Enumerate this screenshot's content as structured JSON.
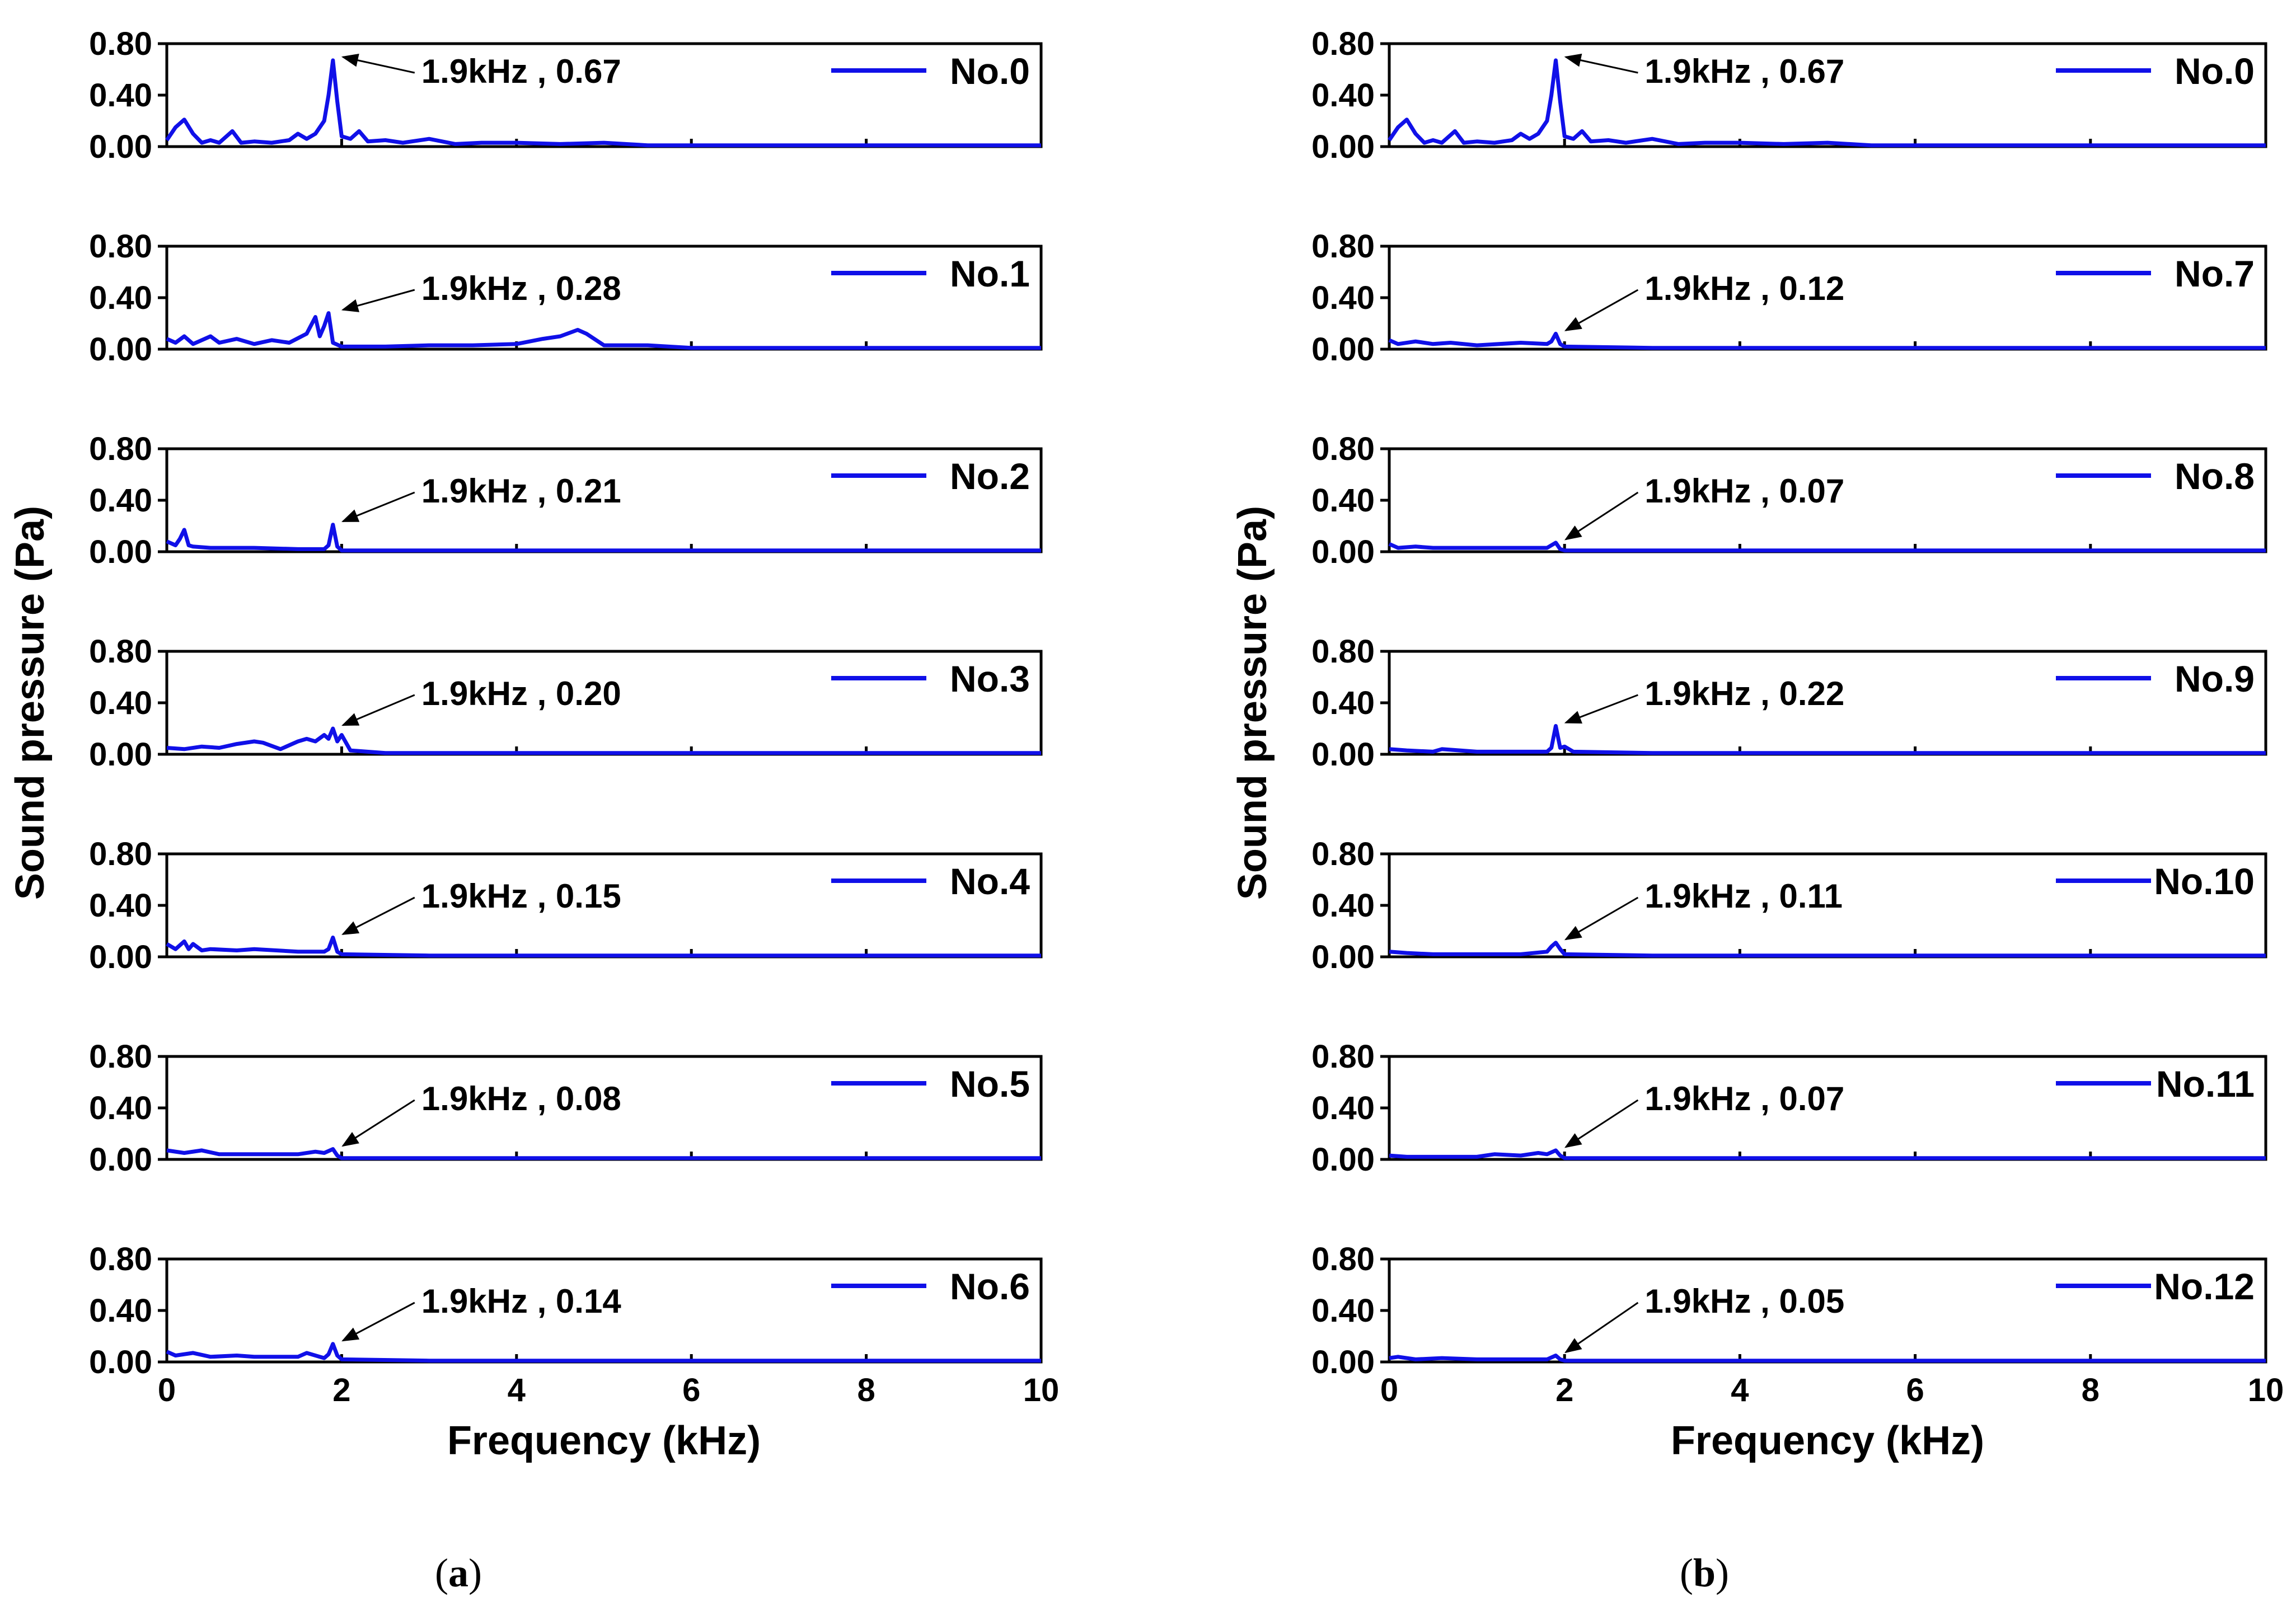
{
  "colors": {
    "series": "#1010e8",
    "axis": "#000000",
    "arrow": "#000000"
  },
  "chart_data": [
    {
      "panel": "a",
      "panel_label": "a",
      "type": "line",
      "ylabel": "Sound pressure (Pa)",
      "xlabel": "Frequency (kHz)",
      "xlim": [
        0,
        10
      ],
      "xticks": [
        "0",
        "2",
        "4",
        "6",
        "8",
        "10"
      ],
      "yticks": [
        "0.00",
        "0.40",
        "0.80"
      ],
      "ylim": [
        0,
        0.8
      ],
      "series": [
        {
          "name": "No.0",
          "peak": 0.67,
          "annotation": "1.9kHz , 0.67",
          "x": [
            0,
            0.1,
            0.2,
            0.3,
            0.4,
            0.5,
            0.6,
            0.75,
            0.85,
            1.0,
            1.2,
            1.4,
            1.5,
            1.6,
            1.7,
            1.8,
            1.85,
            1.9,
            1.95,
            2.0,
            2.1,
            2.2,
            2.3,
            2.5,
            2.7,
            3.0,
            3.3,
            3.6,
            4.0,
            4.5,
            5.0,
            5.5,
            6.0,
            7.0,
            8.0,
            9.0,
            10.0
          ],
          "y": [
            0.05,
            0.15,
            0.21,
            0.1,
            0.03,
            0.05,
            0.03,
            0.12,
            0.03,
            0.04,
            0.03,
            0.05,
            0.1,
            0.06,
            0.1,
            0.2,
            0.4,
            0.67,
            0.35,
            0.08,
            0.06,
            0.12,
            0.04,
            0.05,
            0.03,
            0.06,
            0.02,
            0.03,
            0.03,
            0.02,
            0.03,
            0.01,
            0.01,
            0.01,
            0.01,
            0.01,
            0.01
          ]
        },
        {
          "name": "No.1",
          "peak": 0.28,
          "annotation": "1.9kHz , 0.28",
          "x": [
            0,
            0.1,
            0.2,
            0.3,
            0.5,
            0.6,
            0.8,
            1.0,
            1.2,
            1.4,
            1.6,
            1.7,
            1.75,
            1.8,
            1.85,
            1.9,
            2.0,
            2.5,
            3.0,
            3.5,
            4.0,
            4.3,
            4.5,
            4.7,
            4.8,
            5.0,
            5.5,
            6.0,
            7.0,
            8.0,
            9.0,
            10.0
          ],
          "y": [
            0.08,
            0.05,
            0.1,
            0.04,
            0.1,
            0.05,
            0.08,
            0.04,
            0.07,
            0.05,
            0.12,
            0.25,
            0.1,
            0.18,
            0.28,
            0.05,
            0.02,
            0.02,
            0.03,
            0.03,
            0.04,
            0.08,
            0.1,
            0.15,
            0.12,
            0.03,
            0.03,
            0.01,
            0.01,
            0.01,
            0.01,
            0.01
          ]
        },
        {
          "name": "No.2",
          "peak": 0.21,
          "annotation": "1.9kHz , 0.21",
          "x": [
            0,
            0.1,
            0.15,
            0.2,
            0.25,
            0.3,
            0.5,
            0.8,
            1.0,
            1.5,
            1.8,
            1.85,
            1.9,
            1.95,
            2.0,
            3.0,
            4.0,
            5.0,
            6.0,
            7.0,
            8.0,
            9.0,
            10.0
          ],
          "y": [
            0.08,
            0.05,
            0.1,
            0.17,
            0.05,
            0.04,
            0.03,
            0.03,
            0.03,
            0.02,
            0.02,
            0.05,
            0.21,
            0.04,
            0.01,
            0.01,
            0.01,
            0.01,
            0.01,
            0.01,
            0.01,
            0.01,
            0.01
          ]
        },
        {
          "name": "No.3",
          "peak": 0.2,
          "annotation": "1.9kHz , 0.20",
          "x": [
            0,
            0.2,
            0.4,
            0.6,
            0.8,
            1.0,
            1.1,
            1.3,
            1.5,
            1.6,
            1.7,
            1.8,
            1.85,
            1.9,
            1.95,
            2.0,
            2.1,
            2.5,
            3.0,
            4.0,
            5.0,
            6.0,
            7.0,
            8.0,
            9.0,
            10.0
          ],
          "y": [
            0.05,
            0.04,
            0.06,
            0.05,
            0.08,
            0.1,
            0.09,
            0.04,
            0.1,
            0.12,
            0.1,
            0.15,
            0.12,
            0.2,
            0.1,
            0.15,
            0.03,
            0.01,
            0.01,
            0.01,
            0.01,
            0.01,
            0.01,
            0.01,
            0.01,
            0.01
          ]
        },
        {
          "name": "No.4",
          "peak": 0.15,
          "annotation": "1.9kHz , 0.15",
          "x": [
            0,
            0.1,
            0.2,
            0.25,
            0.3,
            0.4,
            0.5,
            0.8,
            1.0,
            1.5,
            1.8,
            1.85,
            1.9,
            1.95,
            2.0,
            3.0,
            4.0,
            5.0,
            6.0,
            7.0,
            8.0,
            9.0,
            10.0
          ],
          "y": [
            0.1,
            0.06,
            0.12,
            0.06,
            0.1,
            0.05,
            0.06,
            0.05,
            0.06,
            0.04,
            0.04,
            0.06,
            0.15,
            0.04,
            0.02,
            0.01,
            0.01,
            0.01,
            0.01,
            0.01,
            0.01,
            0.01,
            0.01
          ]
        },
        {
          "name": "No.5",
          "peak": 0.08,
          "annotation": "1.9kHz , 0.08",
          "x": [
            0,
            0.2,
            0.4,
            0.6,
            1.0,
            1.5,
            1.7,
            1.8,
            1.9,
            1.95,
            2.0,
            3.0,
            4.0,
            5.0,
            6.0,
            7.0,
            8.0,
            9.0,
            10.0
          ],
          "y": [
            0.07,
            0.05,
            0.07,
            0.04,
            0.04,
            0.04,
            0.06,
            0.05,
            0.08,
            0.03,
            0.01,
            0.01,
            0.01,
            0.01,
            0.01,
            0.01,
            0.01,
            0.01,
            0.01
          ]
        },
        {
          "name": "No.6",
          "peak": 0.14,
          "annotation": "1.9kHz , 0.14",
          "x": [
            0,
            0.1,
            0.3,
            0.5,
            0.8,
            1.0,
            1.5,
            1.6,
            1.8,
            1.85,
            1.9,
            1.95,
            2.0,
            3.0,
            4.0,
            5.0,
            6.0,
            7.0,
            8.0,
            9.0,
            10.0
          ],
          "y": [
            0.08,
            0.05,
            0.07,
            0.04,
            0.05,
            0.04,
            0.04,
            0.07,
            0.03,
            0.06,
            0.14,
            0.05,
            0.02,
            0.01,
            0.01,
            0.01,
            0.01,
            0.01,
            0.01,
            0.01,
            0.01
          ]
        }
      ]
    },
    {
      "panel": "b",
      "panel_label": "b",
      "type": "line",
      "ylabel": "Sound pressure (Pa)",
      "xlabel": "Frequency (kHz)",
      "xlim": [
        0,
        10
      ],
      "xticks": [
        "0",
        "2",
        "4",
        "6",
        "8",
        "10"
      ],
      "yticks": [
        "0.00",
        "0.40",
        "0.80"
      ],
      "ylim": [
        0,
        0.8
      ],
      "series": [
        {
          "name": "No.0",
          "peak": 0.67,
          "annotation": "1.9kHz , 0.67",
          "x": [
            0,
            0.1,
            0.2,
            0.3,
            0.4,
            0.5,
            0.6,
            0.75,
            0.85,
            1.0,
            1.2,
            1.4,
            1.5,
            1.6,
            1.7,
            1.8,
            1.85,
            1.9,
            1.95,
            2.0,
            2.1,
            2.2,
            2.3,
            2.5,
            2.7,
            3.0,
            3.3,
            3.6,
            4.0,
            4.5,
            5.0,
            5.5,
            6.0,
            7.0,
            8.0,
            9.0,
            10.0
          ],
          "y": [
            0.05,
            0.15,
            0.21,
            0.1,
            0.03,
            0.05,
            0.03,
            0.12,
            0.03,
            0.04,
            0.03,
            0.05,
            0.1,
            0.06,
            0.1,
            0.2,
            0.4,
            0.67,
            0.35,
            0.08,
            0.06,
            0.12,
            0.04,
            0.05,
            0.03,
            0.06,
            0.02,
            0.03,
            0.03,
            0.02,
            0.03,
            0.01,
            0.01,
            0.01,
            0.01,
            0.01,
            0.01
          ]
        },
        {
          "name": "No.7",
          "peak": 0.12,
          "annotation": "1.9kHz , 0.12",
          "x": [
            0,
            0.1,
            0.3,
            0.5,
            0.7,
            1.0,
            1.5,
            1.8,
            1.85,
            1.9,
            1.95,
            2.0,
            3.0,
            4.0,
            5.0,
            6.0,
            7.0,
            8.0,
            9.0,
            10.0
          ],
          "y": [
            0.07,
            0.04,
            0.06,
            0.04,
            0.05,
            0.03,
            0.05,
            0.04,
            0.06,
            0.12,
            0.04,
            0.02,
            0.01,
            0.01,
            0.01,
            0.01,
            0.01,
            0.01,
            0.01,
            0.01
          ]
        },
        {
          "name": "No.8",
          "peak": 0.07,
          "annotation": "1.9kHz , 0.07",
          "x": [
            0,
            0.1,
            0.3,
            0.5,
            1.0,
            1.5,
            1.8,
            1.9,
            1.95,
            2.0,
            3.0,
            4.0,
            5.0,
            6.0,
            7.0,
            8.0,
            9.0,
            10.0
          ],
          "y": [
            0.06,
            0.03,
            0.04,
            0.03,
            0.03,
            0.03,
            0.03,
            0.07,
            0.02,
            0.01,
            0.01,
            0.01,
            0.01,
            0.01,
            0.01,
            0.01,
            0.01,
            0.01
          ]
        },
        {
          "name": "No.9",
          "peak": 0.22,
          "annotation": "1.9kHz , 0.22",
          "x": [
            0,
            0.2,
            0.5,
            0.6,
            1.0,
            1.5,
            1.8,
            1.85,
            1.9,
            1.95,
            2.0,
            2.1,
            3.0,
            4.0,
            5.0,
            6.0,
            7.0,
            8.0,
            9.0,
            10.0
          ],
          "y": [
            0.04,
            0.03,
            0.02,
            0.04,
            0.02,
            0.02,
            0.02,
            0.05,
            0.22,
            0.05,
            0.06,
            0.02,
            0.01,
            0.01,
            0.01,
            0.01,
            0.01,
            0.01,
            0.01,
            0.01
          ]
        },
        {
          "name": "No.10",
          "peak": 0.11,
          "annotation": "1.9kHz , 0.11",
          "x": [
            0,
            0.2,
            0.5,
            1.0,
            1.5,
            1.8,
            1.85,
            1.9,
            1.95,
            2.0,
            3.0,
            4.0,
            5.0,
            6.0,
            7.0,
            8.0,
            9.0,
            10.0
          ],
          "y": [
            0.04,
            0.03,
            0.02,
            0.02,
            0.02,
            0.04,
            0.08,
            0.11,
            0.06,
            0.02,
            0.01,
            0.01,
            0.01,
            0.01,
            0.01,
            0.01,
            0.01,
            0.01
          ]
        },
        {
          "name": "No.11",
          "peak": 0.07,
          "annotation": "1.9kHz , 0.07",
          "x": [
            0,
            0.2,
            0.5,
            1.0,
            1.2,
            1.5,
            1.7,
            1.8,
            1.9,
            1.95,
            2.0,
            3.0,
            4.0,
            5.0,
            6.0,
            7.0,
            8.0,
            9.0,
            10.0
          ],
          "y": [
            0.03,
            0.02,
            0.02,
            0.02,
            0.04,
            0.03,
            0.05,
            0.04,
            0.07,
            0.03,
            0.01,
            0.01,
            0.01,
            0.01,
            0.01,
            0.01,
            0.01,
            0.01,
            0.01
          ]
        },
        {
          "name": "No.12",
          "peak": 0.05,
          "annotation": "1.9kHz , 0.05",
          "x": [
            0,
            0.1,
            0.3,
            0.6,
            1.0,
            1.5,
            1.8,
            1.9,
            1.95,
            2.0,
            3.0,
            4.0,
            5.0,
            6.0,
            7.0,
            8.0,
            9.0,
            10.0
          ],
          "y": [
            0.03,
            0.04,
            0.02,
            0.03,
            0.02,
            0.02,
            0.02,
            0.05,
            0.02,
            0.01,
            0.01,
            0.01,
            0.01,
            0.01,
            0.01,
            0.01,
            0.01,
            0.01
          ]
        }
      ]
    }
  ]
}
